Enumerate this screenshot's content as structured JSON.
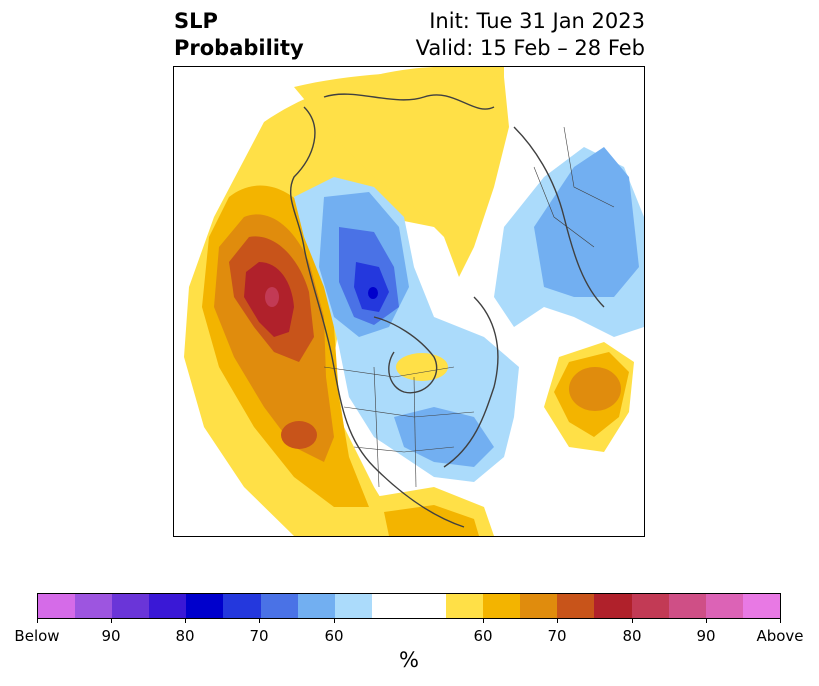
{
  "header": {
    "title_line1": "SLP",
    "title_line2": "Probability",
    "init_label": "Init: Tue 31 Jan 2023",
    "valid_label": "Valid: 15 Feb – 28 Feb"
  },
  "colorbar": {
    "units": "%",
    "colors": [
      "#d56be8",
      "#9d55e0",
      "#6a35d8",
      "#3a18d6",
      "#0000cc",
      "#2438dd",
      "#4a72e6",
      "#72aff1",
      "#abdbfb",
      "#ffffff",
      "#ffffff",
      "#ffe047",
      "#f3b400",
      "#e08c0d",
      "#c8541a",
      "#b0212b",
      "#c23a55",
      "#cf4f86",
      "#dc63b6",
      "#e879e4"
    ],
    "tick_labels": [
      "Below",
      "90",
      "80",
      "70",
      "60",
      "60",
      "70",
      "80",
      "90",
      "Above"
    ]
  },
  "map": {
    "land_color": "#ffffff",
    "border_color": "#404040"
  }
}
